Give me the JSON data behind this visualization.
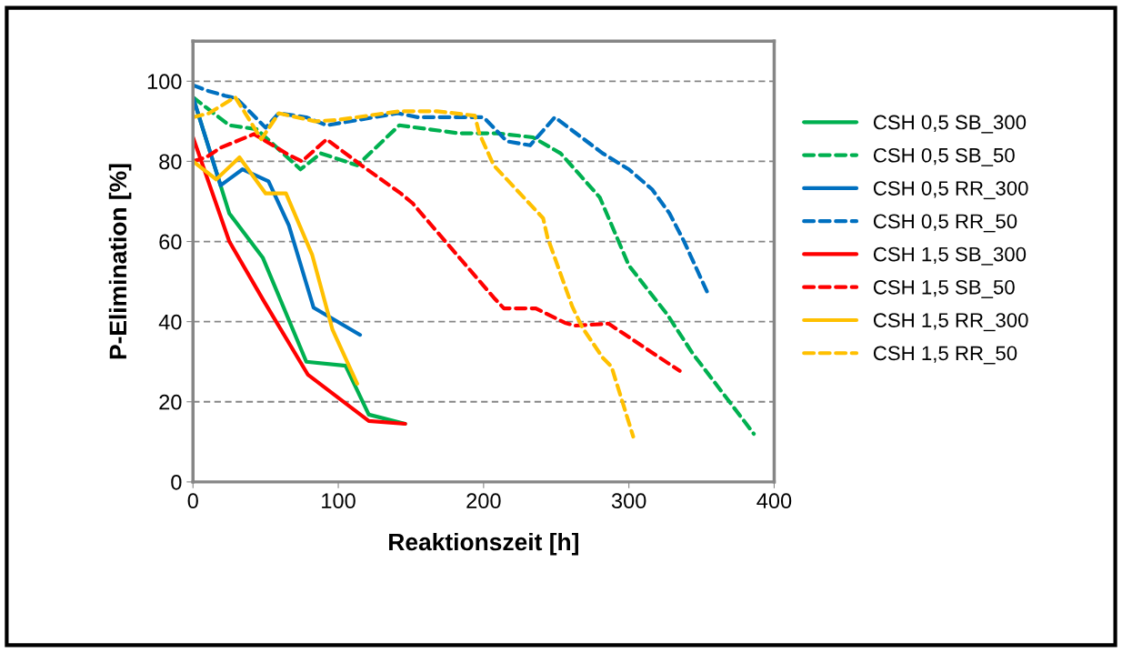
{
  "chart_data": {
    "type": "line",
    "xlabel": "Reaktionszeit [h]",
    "ylabel": "P-Elimination [%]",
    "xlim": [
      0,
      400
    ],
    "xticks": [
      0,
      100,
      200,
      300,
      400
    ],
    "ylim": [
      0,
      110
    ],
    "yticks": [
      0,
      20,
      40,
      60,
      80,
      100
    ],
    "grid": "y",
    "legend": "right",
    "marker": "none",
    "series": [
      {
        "name": "CSH 0,5 SB_300",
        "color": "#00b050",
        "line_style": "solid",
        "x": [
          0,
          25,
          48,
          78,
          105,
          121,
          146
        ],
        "values": [
          96,
          67,
          56,
          30,
          29,
          16.8,
          14.5
        ]
      },
      {
        "name": "CSH 0,5 SB_50",
        "color": "#00b050",
        "line_style": "dashed",
        "x": [
          0,
          25,
          44,
          74,
          88,
          113,
          142,
          183,
          209,
          234,
          253,
          280,
          300,
          326,
          344,
          386
        ],
        "values": [
          96,
          89,
          88,
          78,
          82,
          79,
          89,
          87,
          87,
          86,
          82,
          71,
          54,
          42,
          32,
          12
        ]
      },
      {
        "name": "CSH 0,5 RR_300",
        "color": "#0070c0",
        "line_style": "solid",
        "x": [
          0,
          19,
          34,
          52,
          66,
          83,
          115
        ],
        "values": [
          96,
          74,
          78,
          75,
          64,
          43.5,
          36.7
        ]
      },
      {
        "name": "CSH 0,5 RR_50",
        "color": "#0070c0",
        "line_style": "dashed",
        "x": [
          0,
          11,
          22,
          30,
          50,
          59,
          78,
          92,
          141,
          155,
          200,
          216,
          232,
          249,
          282,
          300,
          316,
          328,
          338,
          355
        ],
        "values": [
          99,
          97.5,
          96.4,
          95.7,
          88.4,
          92,
          91,
          89,
          92,
          91,
          91,
          85,
          84,
          91,
          82,
          78,
          73,
          67,
          60,
          46.5
        ]
      },
      {
        "name": "CSH 1,5 SB_300",
        "color": "#ff0000",
        "line_style": "solid",
        "x": [
          0,
          25,
          49,
          79,
          121,
          146
        ],
        "values": [
          86,
          60,
          45,
          26.8,
          15.2,
          14.5
        ]
      },
      {
        "name": "CSH 1,5 SB_50",
        "color": "#ff0000",
        "line_style": "dashed",
        "x": [
          0,
          9,
          19,
          42,
          66,
          75,
          92,
          116,
          143,
          151,
          207,
          214,
          236,
          256,
          263,
          286,
          335
        ],
        "values": [
          80,
          81,
          83.4,
          86.8,
          81.6,
          80,
          85.5,
          79,
          72,
          69.6,
          46,
          43.3,
          43.3,
          39.7,
          39,
          39.5,
          27.7
        ]
      },
      {
        "name": "CSH 1,5 RR_300",
        "color": "#ffc000",
        "line_style": "solid",
        "x": [
          0,
          16,
          32,
          50,
          64,
          82,
          96,
          113
        ],
        "values": [
          80,
          75.5,
          81,
          72,
          72,
          56.7,
          38,
          24.5
        ]
      },
      {
        "name": "CSH 1,5 RR_50",
        "color": "#ffc000",
        "line_style": "dashed",
        "x": [
          0,
          11,
          29,
          36,
          47,
          59,
          84,
          99,
          142,
          168,
          194,
          197,
          207,
          241,
          244,
          261,
          268,
          282,
          288,
          303
        ],
        "values": [
          91,
          92,
          96,
          92,
          85.5,
          92,
          90,
          90.3,
          92.5,
          92.5,
          91.4,
          87,
          79,
          65.8,
          61,
          43.8,
          38.5,
          31,
          28.8,
          11.3
        ]
      }
    ]
  }
}
